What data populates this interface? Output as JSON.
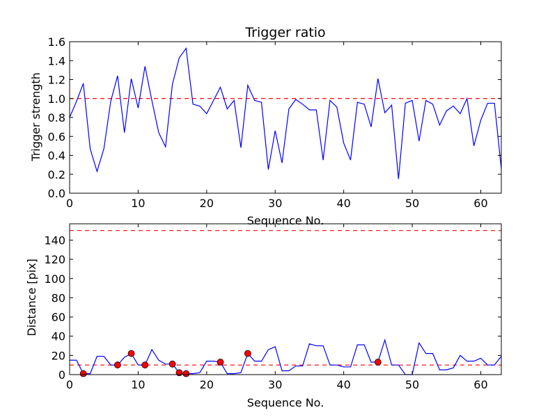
{
  "chart_data": [
    {
      "type": "line",
      "title": "Trigger ratio",
      "xlabel": "Sequence No.",
      "ylabel": "Trigger strength",
      "xlim": [
        0,
        63
      ],
      "ylim": [
        0,
        1.6
      ],
      "xticks": [
        0,
        10,
        20,
        30,
        40,
        50,
        60
      ],
      "xtick_labels": [
        "0",
        "10",
        "20",
        "30",
        "40",
        "50",
        "60"
      ],
      "yticks": [
        0,
        0.2,
        0.4,
        0.6,
        0.8,
        1.0,
        1.2,
        1.4,
        1.6
      ],
      "ytick_labels": [
        "0.0",
        "0.2",
        "0.4",
        "0.6",
        "0.8",
        "1.0",
        "1.2",
        "1.4",
        "1.6"
      ],
      "series": [
        {
          "name": "trigger strength",
          "color": "#0000ff",
          "x": [
            0,
            1,
            2,
            3,
            4,
            5,
            6,
            7,
            8,
            9,
            10,
            11,
            12,
            13,
            14,
            15,
            16,
            17,
            18,
            19,
            20,
            21,
            22,
            23,
            24,
            25,
            26,
            27,
            28,
            29,
            30,
            31,
            32,
            33,
            34,
            35,
            36,
            37,
            38,
            39,
            40,
            41,
            42,
            43,
            44,
            45,
            46,
            47,
            48,
            49,
            50,
            51,
            52,
            53,
            54,
            55,
            56,
            57,
            58,
            59,
            60,
            61,
            62,
            63
          ],
          "values": [
            0.8,
            0.97,
            1.16,
            0.47,
            0.23,
            0.47,
            0.97,
            1.24,
            0.64,
            1.21,
            0.9,
            1.34,
            0.98,
            0.64,
            0.49,
            1.15,
            1.43,
            1.53,
            0.94,
            0.92,
            0.84,
            0.98,
            1.12,
            0.89,
            0.98,
            0.48,
            1.14,
            0.98,
            0.96,
            0.25,
            0.66,
            0.32,
            0.89,
            0.99,
            0.94,
            0.88,
            0.88,
            0.35,
            0.98,
            0.91,
            0.53,
            0.35,
            0.96,
            0.94,
            0.7,
            1.21,
            0.85,
            0.93,
            0.15,
            0.95,
            0.98,
            0.55,
            0.98,
            0.94,
            0.72,
            0.87,
            0.92,
            0.84,
            1.0,
            0.5,
            0.77,
            0.95,
            0.95,
            0.26
          ]
        }
      ],
      "reference_lines": [
        {
          "y": 1.0,
          "color": "#ff0000",
          "style": "dashed"
        }
      ]
    },
    {
      "type": "line",
      "title": "",
      "xlabel": "Sequence No.",
      "ylabel": "Distance [pix]",
      "xlim": [
        0,
        63
      ],
      "ylim": [
        0,
        157
      ],
      "xticks": [
        0,
        10,
        20,
        30,
        40,
        50,
        60
      ],
      "xtick_labels": [
        "0",
        "10",
        "20",
        "30",
        "40",
        "50",
        "60"
      ],
      "yticks": [
        0,
        20,
        40,
        60,
        80,
        100,
        120,
        140
      ],
      "ytick_labels": [
        "0",
        "20",
        "40",
        "60",
        "80",
        "100",
        "120",
        "140"
      ],
      "series": [
        {
          "name": "distance",
          "color": "#0000ff",
          "x": [
            0,
            1,
            2,
            3,
            4,
            5,
            6,
            7,
            8,
            9,
            10,
            11,
            12,
            13,
            14,
            15,
            16,
            17,
            18,
            19,
            20,
            21,
            22,
            23,
            24,
            25,
            26,
            27,
            28,
            29,
            30,
            31,
            32,
            33,
            34,
            35,
            36,
            37,
            38,
            39,
            40,
            41,
            42,
            43,
            44,
            45,
            46,
            47,
            48,
            49,
            50,
            51,
            52,
            53,
            54,
            55,
            56,
            57,
            58,
            59,
            60,
            61,
            62,
            63
          ],
          "values": [
            15,
            15,
            1,
            1,
            19,
            19,
            10,
            10,
            18,
            22,
            10,
            10,
            26,
            15,
            11,
            11,
            2,
            1,
            1,
            2,
            14,
            14,
            13,
            1,
            1,
            2,
            22,
            14,
            14,
            26,
            29,
            4,
            4,
            9,
            9,
            32,
            30,
            30,
            10,
            10,
            8,
            8,
            31,
            31,
            13,
            13,
            36,
            10,
            10,
            0,
            0,
            33,
            22,
            22,
            5,
            5,
            7,
            20,
            14,
            14,
            17,
            10,
            10,
            19
          ]
        },
        {
          "name": "flagged points",
          "color": "#ff0000",
          "marker": "circle",
          "x": [
            2,
            7,
            9,
            11,
            15,
            16,
            17,
            22,
            26,
            45
          ],
          "values": [
            1,
            10,
            22,
            10,
            11,
            2,
            1,
            13,
            22,
            13
          ]
        }
      ],
      "reference_lines": [
        {
          "y": 150,
          "color": "#ff0000",
          "style": "dashed"
        },
        {
          "y": 10,
          "color": "#ff0000",
          "style": "dashed"
        }
      ]
    }
  ]
}
